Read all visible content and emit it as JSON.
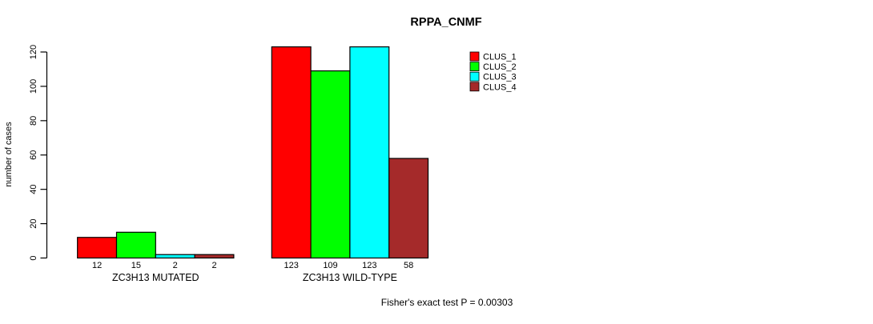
{
  "chart_data": {
    "type": "bar",
    "title": "RPPA_CNMF",
    "ylabel": "number of cases",
    "xlabel": "",
    "ylim": [
      0,
      120
    ],
    "yticks": [
      0,
      20,
      40,
      60,
      80,
      100,
      120
    ],
    "grid": false,
    "legend_position": "right-of-plot-top",
    "bar_border_color": "#000000",
    "background_color": "#ffffff",
    "groups": [
      "ZC3H13 MUTATED",
      "ZC3H13 WILD-TYPE"
    ],
    "series": [
      {
        "name": "CLUS_1",
        "color": "#ff0000",
        "values": [
          12,
          123
        ]
      },
      {
        "name": "CLUS_2",
        "color": "#00ff00",
        "values": [
          15,
          109
        ]
      },
      {
        "name": "CLUS_3",
        "color": "#00ffff",
        "values": [
          2,
          123
        ]
      },
      {
        "name": "CLUS_4",
        "color": "#a52a2a",
        "values": [
          2,
          58
        ]
      }
    ],
    "annotation": "Fisher's exact test P = 0.00303"
  }
}
